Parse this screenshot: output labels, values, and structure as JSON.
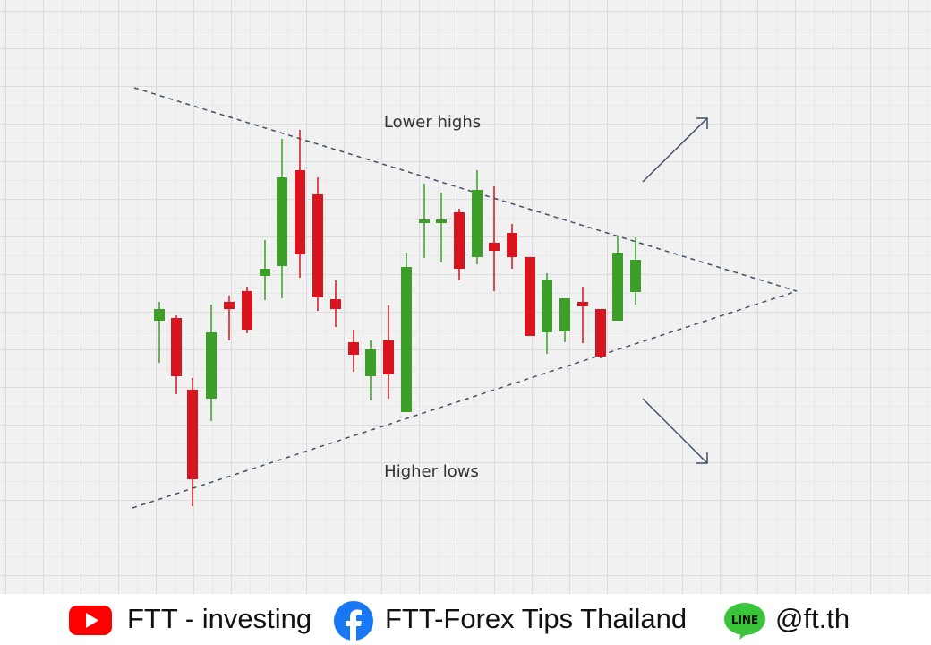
{
  "diagram": {
    "top_label": "Lower highs",
    "bottom_label": "Higher lows"
  },
  "footer": {
    "youtube": "FTT - investing",
    "facebook": "FTT-Forex Tips Thailand",
    "line_icon": "LINE",
    "line": "@ft.th"
  }
}
